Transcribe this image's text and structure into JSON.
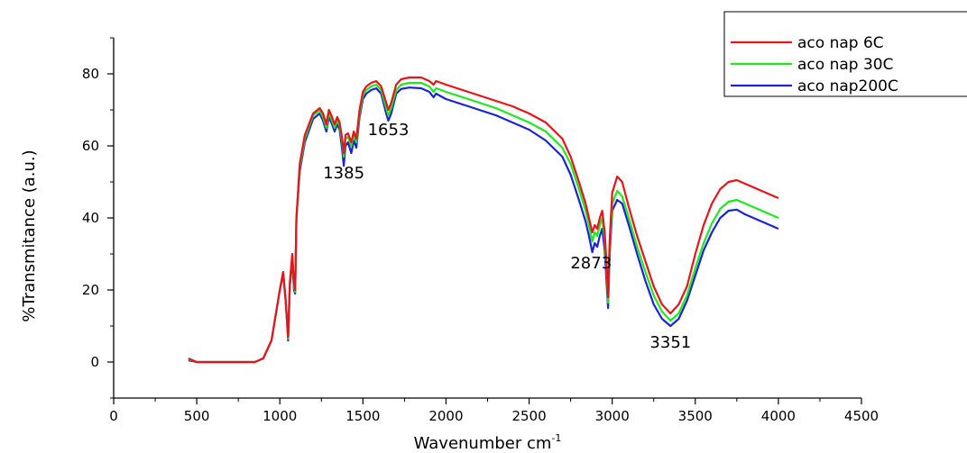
{
  "chart_data": {
    "type": "line",
    "title": "",
    "xlabel": "Wavenumber cm",
    "xlabel_superscript": "-1",
    "ylabel": "%Transmitance (a.u.)",
    "xlim": [
      0,
      4500
    ],
    "ylim": [
      -10,
      90
    ],
    "x_ticks": [
      0,
      500,
      1000,
      1500,
      2000,
      2500,
      3000,
      3500,
      4000,
      4500
    ],
    "x_tick_labels": [
      "0",
      "500",
      "1000",
      "1500",
      "2000",
      "2500",
      "3000",
      "3500",
      "4000",
      "4500"
    ],
    "y_ticks": [
      0,
      20,
      40,
      60,
      80
    ],
    "y_tick_labels": [
      "0",
      "20",
      "40",
      "60",
      "80"
    ],
    "grid": false,
    "legend_position": "top-right",
    "annotations": [
      {
        "text": "1385",
        "x": 1385,
        "y": 51
      },
      {
        "text": "1653",
        "x": 1653,
        "y": 63
      },
      {
        "text": "2873",
        "x": 2873,
        "y": 26
      },
      {
        "text": "3351",
        "x": 3351,
        "y": 4
      }
    ],
    "series": [
      {
        "name": "aco nap 6C",
        "color": "#e8141a",
        "points": [
          [
            450,
            1
          ],
          [
            500,
            0
          ],
          [
            600,
            0
          ],
          [
            700,
            0
          ],
          [
            850,
            0
          ],
          [
            900,
            1
          ],
          [
            950,
            6
          ],
          [
            1000,
            20
          ],
          [
            1020,
            25
          ],
          [
            1035,
            17
          ],
          [
            1050,
            7
          ],
          [
            1060,
            22
          ],
          [
            1075,
            30
          ],
          [
            1085,
            22
          ],
          [
            1092,
            20
          ],
          [
            1100,
            40
          ],
          [
            1120,
            55
          ],
          [
            1150,
            63
          ],
          [
            1200,
            69
          ],
          [
            1240,
            70.5
          ],
          [
            1260,
            69
          ],
          [
            1280,
            66
          ],
          [
            1295,
            70
          ],
          [
            1310,
            68.5
          ],
          [
            1330,
            66
          ],
          [
            1345,
            68
          ],
          [
            1360,
            66.5
          ],
          [
            1375,
            62
          ],
          [
            1385,
            58
          ],
          [
            1395,
            63
          ],
          [
            1410,
            63.5
          ],
          [
            1430,
            61
          ],
          [
            1445,
            64
          ],
          [
            1460,
            62
          ],
          [
            1480,
            70
          ],
          [
            1500,
            75
          ],
          [
            1520,
            76.5
          ],
          [
            1550,
            77.5
          ],
          [
            1580,
            78
          ],
          [
            1610,
            76.5
          ],
          [
            1640,
            72
          ],
          [
            1653,
            70
          ],
          [
            1670,
            72
          ],
          [
            1700,
            77
          ],
          [
            1730,
            78.5
          ],
          [
            1780,
            79
          ],
          [
            1850,
            79
          ],
          [
            1900,
            78
          ],
          [
            1925,
            77
          ],
          [
            1940,
            78
          ],
          [
            2000,
            77
          ],
          [
            2100,
            75.5
          ],
          [
            2200,
            74
          ],
          [
            2300,
            72.5
          ],
          [
            2400,
            71
          ],
          [
            2500,
            69
          ],
          [
            2600,
            66.5
          ],
          [
            2700,
            62
          ],
          [
            2750,
            57
          ],
          [
            2800,
            50
          ],
          [
            2840,
            44
          ],
          [
            2860,
            40
          ],
          [
            2880,
            36
          ],
          [
            2895,
            38
          ],
          [
            2910,
            37
          ],
          [
            2925,
            40
          ],
          [
            2940,
            42
          ],
          [
            2955,
            36
          ],
          [
            2965,
            28
          ],
          [
            2975,
            18
          ],
          [
            2985,
            34
          ],
          [
            3000,
            47
          ],
          [
            3030,
            51.5
          ],
          [
            3060,
            50
          ],
          [
            3100,
            43
          ],
          [
            3150,
            35
          ],
          [
            3200,
            28
          ],
          [
            3250,
            21
          ],
          [
            3300,
            16
          ],
          [
            3351,
            13.5
          ],
          [
            3400,
            16
          ],
          [
            3450,
            21
          ],
          [
            3500,
            30
          ],
          [
            3550,
            38
          ],
          [
            3600,
            44
          ],
          [
            3650,
            48
          ],
          [
            3700,
            50
          ],
          [
            3750,
            50.5
          ],
          [
            3800,
            49.5
          ],
          [
            3900,
            47.5
          ],
          [
            4000,
            45.5
          ]
        ]
      },
      {
        "name": "aco nap 30C",
        "color": "#1ee81e",
        "points": [
          [
            450,
            0.8
          ],
          [
            500,
            0
          ],
          [
            600,
            0
          ],
          [
            700,
            0
          ],
          [
            850,
            0
          ],
          [
            900,
            1
          ],
          [
            950,
            6
          ],
          [
            1000,
            20
          ],
          [
            1020,
            25
          ],
          [
            1035,
            17
          ],
          [
            1050,
            6.5
          ],
          [
            1060,
            22
          ],
          [
            1075,
            29.5
          ],
          [
            1085,
            21
          ],
          [
            1092,
            19.5
          ],
          [
            1100,
            40
          ],
          [
            1120,
            54
          ],
          [
            1150,
            62
          ],
          [
            1200,
            68.5
          ],
          [
            1240,
            69.8
          ],
          [
            1260,
            68
          ],
          [
            1280,
            65
          ],
          [
            1295,
            69
          ],
          [
            1310,
            67.5
          ],
          [
            1330,
            65
          ],
          [
            1345,
            67
          ],
          [
            1360,
            65.5
          ],
          [
            1375,
            61
          ],
          [
            1385,
            57
          ],
          [
            1395,
            62
          ],
          [
            1410,
            62.5
          ],
          [
            1430,
            60
          ],
          [
            1445,
            63
          ],
          [
            1460,
            61
          ],
          [
            1480,
            69
          ],
          [
            1500,
            74
          ],
          [
            1520,
            75.5
          ],
          [
            1550,
            76.5
          ],
          [
            1580,
            77
          ],
          [
            1610,
            75.5
          ],
          [
            1640,
            70.5
          ],
          [
            1653,
            68.5
          ],
          [
            1670,
            70.5
          ],
          [
            1700,
            75.5
          ],
          [
            1730,
            77
          ],
          [
            1780,
            77.5
          ],
          [
            1850,
            77.5
          ],
          [
            1900,
            76.5
          ],
          [
            1925,
            75
          ],
          [
            1940,
            76
          ],
          [
            2000,
            75
          ],
          [
            2100,
            73.5
          ],
          [
            2200,
            72
          ],
          [
            2300,
            70.5
          ],
          [
            2400,
            68.5
          ],
          [
            2500,
            66.5
          ],
          [
            2600,
            64
          ],
          [
            2700,
            59.5
          ],
          [
            2750,
            55
          ],
          [
            2800,
            48
          ],
          [
            2840,
            42
          ],
          [
            2860,
            38
          ],
          [
            2880,
            33.5
          ],
          [
            2895,
            36
          ],
          [
            2910,
            35
          ],
          [
            2925,
            38
          ],
          [
            2940,
            40
          ],
          [
            2955,
            34
          ],
          [
            2965,
            26
          ],
          [
            2975,
            16.5
          ],
          [
            2985,
            32
          ],
          [
            3000,
            44
          ],
          [
            3030,
            47.5
          ],
          [
            3060,
            46
          ],
          [
            3100,
            40
          ],
          [
            3150,
            32
          ],
          [
            3200,
            25
          ],
          [
            3250,
            18.5
          ],
          [
            3300,
            14
          ],
          [
            3351,
            11.5
          ],
          [
            3400,
            13.5
          ],
          [
            3450,
            18.5
          ],
          [
            3500,
            26
          ],
          [
            3550,
            33
          ],
          [
            3600,
            38.5
          ],
          [
            3650,
            42.5
          ],
          [
            3700,
            44.5
          ],
          [
            3750,
            45
          ],
          [
            3800,
            44
          ],
          [
            3900,
            42
          ],
          [
            4000,
            40
          ]
        ]
      },
      {
        "name": "aco nap200C",
        "color": "#1a23d6",
        "points": [
          [
            450,
            0.5
          ],
          [
            500,
            0
          ],
          [
            600,
            0
          ],
          [
            700,
            0
          ],
          [
            850,
            0
          ],
          [
            900,
            1
          ],
          [
            950,
            6
          ],
          [
            1000,
            20
          ],
          [
            1020,
            24.5
          ],
          [
            1035,
            17
          ],
          [
            1050,
            6
          ],
          [
            1060,
            21
          ],
          [
            1075,
            28.5
          ],
          [
            1085,
            20
          ],
          [
            1092,
            19
          ],
          [
            1100,
            40
          ],
          [
            1120,
            53
          ],
          [
            1150,
            61
          ],
          [
            1200,
            67.5
          ],
          [
            1240,
            69
          ],
          [
            1260,
            67
          ],
          [
            1280,
            64
          ],
          [
            1295,
            68
          ],
          [
            1310,
            66.5
          ],
          [
            1330,
            64
          ],
          [
            1345,
            66
          ],
          [
            1360,
            64.5
          ],
          [
            1375,
            59
          ],
          [
            1385,
            54.5
          ],
          [
            1395,
            60
          ],
          [
            1410,
            61
          ],
          [
            1430,
            58
          ],
          [
            1445,
            61.5
          ],
          [
            1460,
            59.5
          ],
          [
            1480,
            68
          ],
          [
            1500,
            73
          ],
          [
            1520,
            74.5
          ],
          [
            1550,
            75.5
          ],
          [
            1580,
            76
          ],
          [
            1610,
            74.5
          ],
          [
            1640,
            69
          ],
          [
            1653,
            67
          ],
          [
            1670,
            69
          ],
          [
            1700,
            74.5
          ],
          [
            1730,
            75.8
          ],
          [
            1780,
            76.2
          ],
          [
            1850,
            76
          ],
          [
            1900,
            75
          ],
          [
            1925,
            73.5
          ],
          [
            1940,
            74.5
          ],
          [
            2000,
            73
          ],
          [
            2100,
            71.5
          ],
          [
            2200,
            70
          ],
          [
            2300,
            68.5
          ],
          [
            2400,
            66.5
          ],
          [
            2500,
            64.5
          ],
          [
            2600,
            61.5
          ],
          [
            2700,
            57
          ],
          [
            2750,
            52
          ],
          [
            2800,
            45
          ],
          [
            2840,
            39
          ],
          [
            2860,
            35
          ],
          [
            2880,
            30.5
          ],
          [
            2895,
            33
          ],
          [
            2910,
            32
          ],
          [
            2925,
            35
          ],
          [
            2940,
            37
          ],
          [
            2955,
            31
          ],
          [
            2965,
            23
          ],
          [
            2975,
            15
          ],
          [
            2985,
            30
          ],
          [
            3000,
            42
          ],
          [
            3030,
            45
          ],
          [
            3060,
            44
          ],
          [
            3100,
            38
          ],
          [
            3150,
            30
          ],
          [
            3200,
            22.5
          ],
          [
            3250,
            16
          ],
          [
            3300,
            12
          ],
          [
            3351,
            10
          ],
          [
            3400,
            12
          ],
          [
            3450,
            17
          ],
          [
            3500,
            24
          ],
          [
            3550,
            31
          ],
          [
            3600,
            36
          ],
          [
            3650,
            40
          ],
          [
            3700,
            42
          ],
          [
            3750,
            42.3
          ],
          [
            3800,
            41
          ],
          [
            3900,
            39
          ],
          [
            4000,
            37
          ]
        ]
      }
    ]
  }
}
